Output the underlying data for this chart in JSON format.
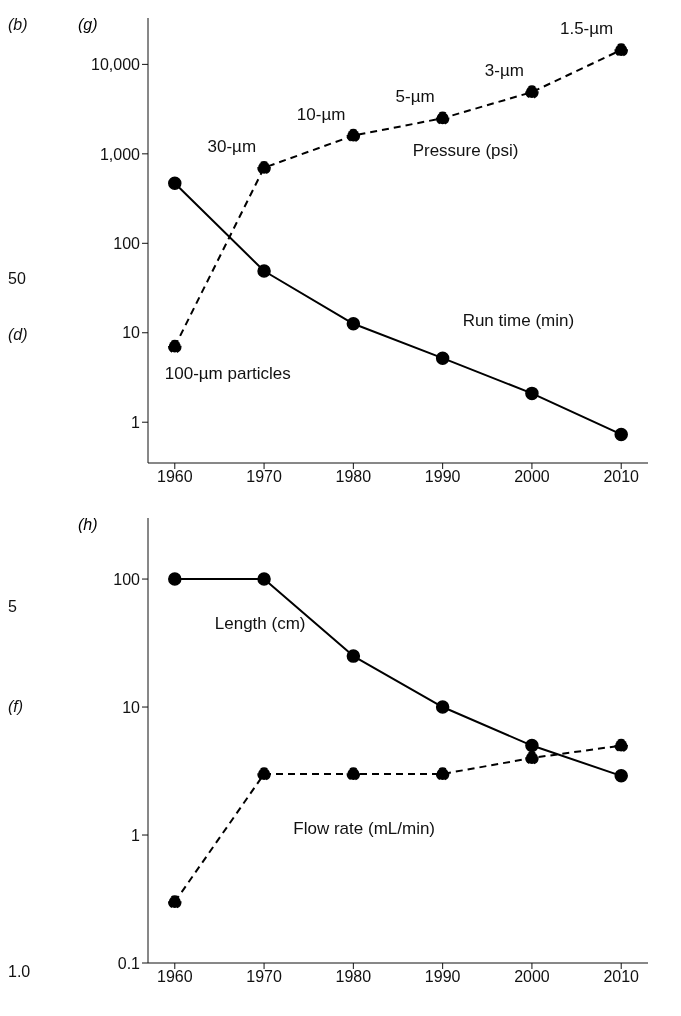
{
  "chart_data": [
    {
      "type": "line",
      "title": "(g)",
      "log": "y",
      "marker": "circle",
      "x": [
        1960,
        1970,
        1980,
        1990,
        2000,
        2010
      ],
      "xlim": [
        1957,
        2013
      ],
      "xticks": [
        1960,
        1970,
        1980,
        1990,
        2000,
        2010
      ],
      "ylim": [
        0.35,
        33000
      ],
      "yticks": [
        1,
        10,
        100,
        {
          "value": 1000,
          "label": "1,000"
        },
        {
          "value": 10000,
          "label": "10,000"
        }
      ],
      "series": [
        {
          "name": "Pressure (psi)",
          "color": "#000000",
          "line_style": "dashed",
          "values": [
            7,
            700,
            1600,
            2500,
            4900,
            14500
          ]
        },
        {
          "name": "Run time (min)",
          "color": "#000000",
          "line_style": "solid",
          "values": [
            470,
            49,
            12.6,
            5.2,
            2.1,
            0.73
          ]
        }
      ],
      "annotations": [
        {
          "text": "100-µm particles",
          "x": 1960,
          "y": 7
        },
        {
          "text": "30-µm",
          "x": 1970,
          "y": 700
        },
        {
          "text": "10-µm",
          "x": 1980,
          "y": 1600
        },
        {
          "text": "5-µm",
          "x": 1990,
          "y": 2500
        },
        {
          "text": "3-µm",
          "x": 2000,
          "y": 4900
        },
        {
          "text": "1.5-µm",
          "x": 2010,
          "y": 14500
        },
        "(b)",
        "50",
        "(d)"
      ]
    },
    {
      "type": "line",
      "title": "(h)",
      "log": "y",
      "marker": "circle",
      "x": [
        1960,
        1970,
        1980,
        1990,
        2000,
        2010
      ],
      "xlim": [
        1957,
        2013
      ],
      "xticks": [
        1960,
        1970,
        1980,
        1990,
        2000,
        2010
      ],
      "ylim": [
        0.1,
        300
      ],
      "yticks": [
        0.1,
        1,
        10,
        100
      ],
      "series": [
        {
          "name": "Length (cm)",
          "color": "#000000",
          "line_style": "solid",
          "values": [
            100,
            100,
            25,
            10,
            5,
            2.9
          ]
        },
        {
          "name": "Flow rate (mL/min)",
          "color": "#000000",
          "line_style": "dashed",
          "values": [
            0.3,
            3,
            3,
            3,
            4,
            5
          ]
        }
      ],
      "annotations": [
        "5",
        "(f)",
        "1.0"
      ]
    }
  ]
}
